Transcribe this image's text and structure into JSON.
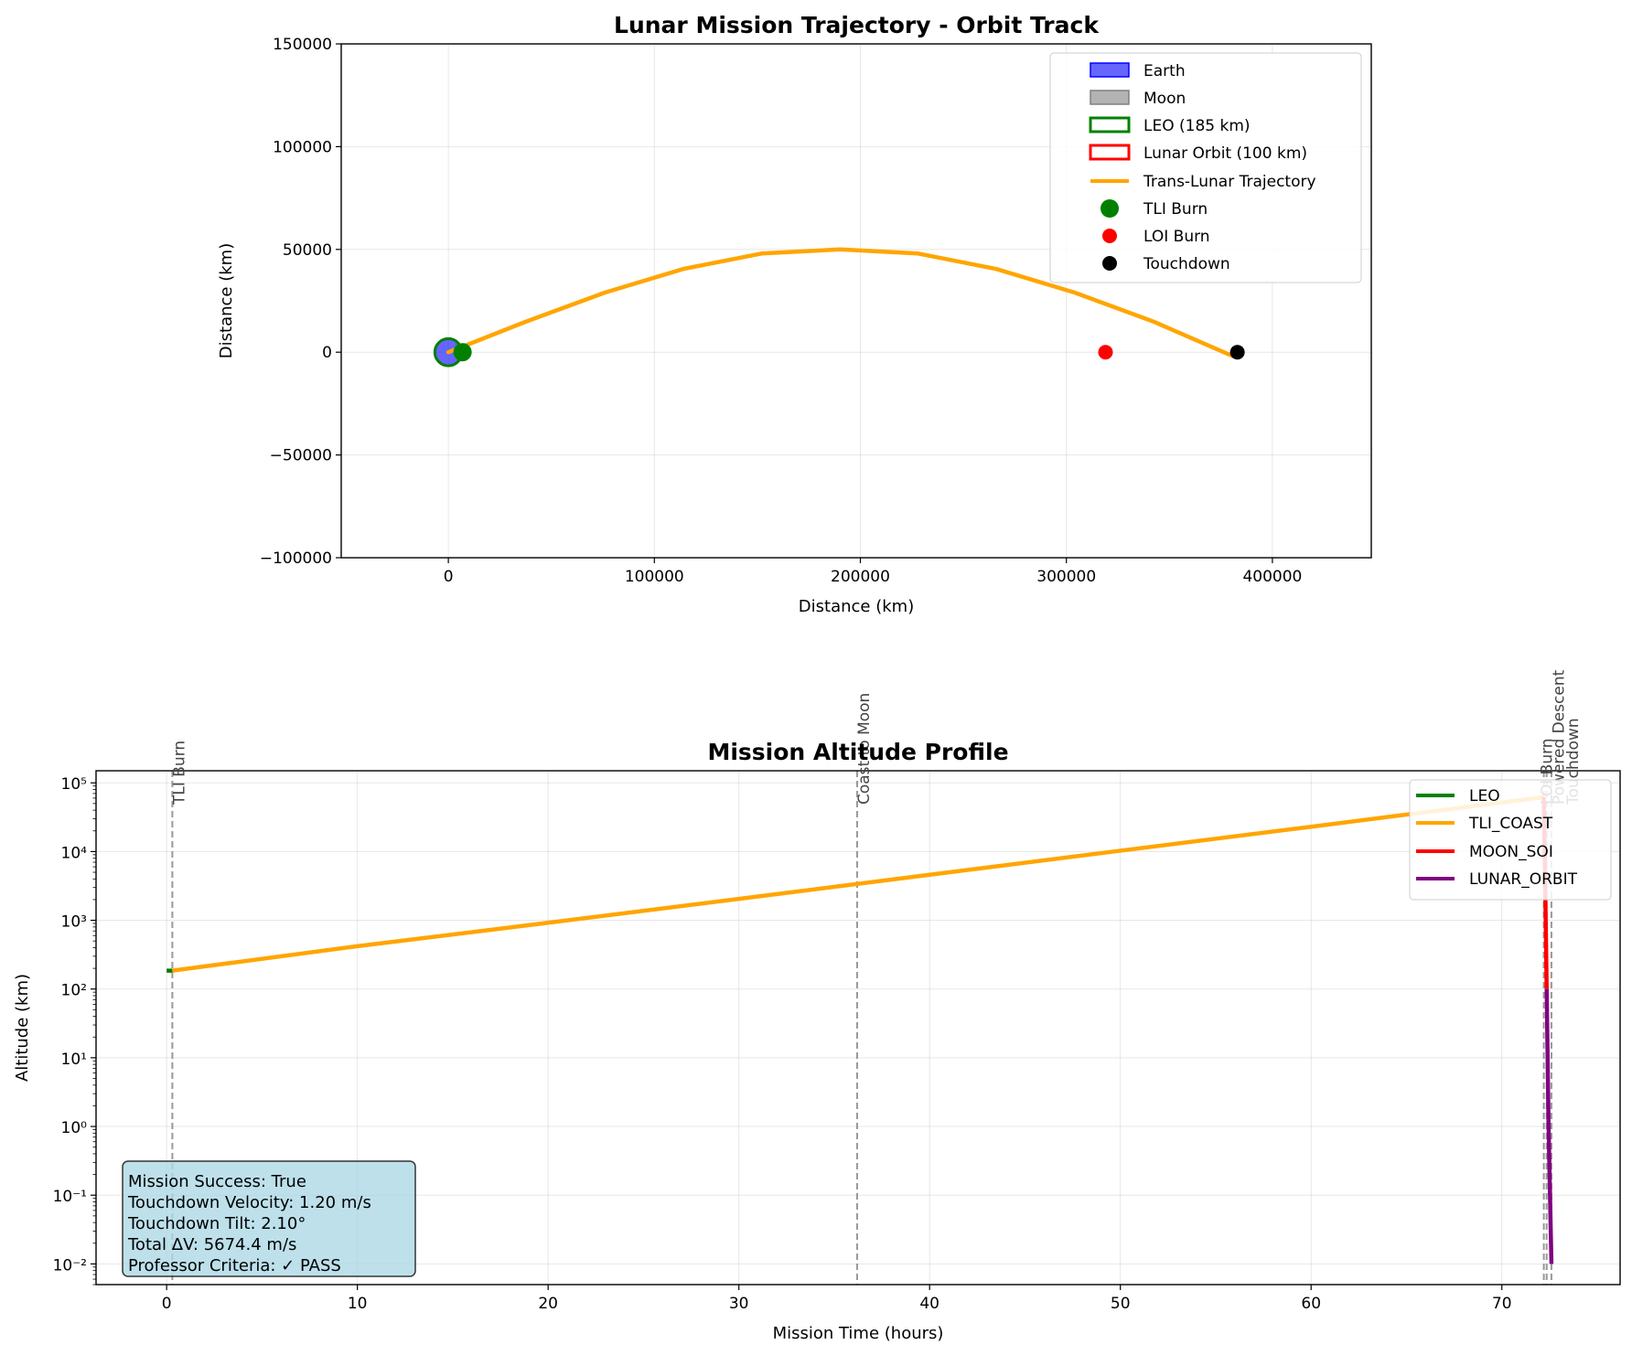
{
  "colors": {
    "earth": "#0000ff",
    "moon": "#808080",
    "leo": "#008000",
    "lunar_orbit": "#ff0000",
    "trajectory": "#ffa500",
    "tli": "#008000",
    "loi": "#ff0000",
    "touchdown": "#000000",
    "tli_coast": "#ffa500",
    "moon_soi": "#ff0000",
    "lunar_orbit_phase": "#800080",
    "info_box": "#add8e6"
  },
  "chart_data": [
    {
      "type": "line",
      "title": "Lunar Mission Trajectory - Orbit Track",
      "xlabel": "Distance (km)",
      "ylabel": "Distance (km)",
      "xlim": [
        -52000,
        448000
      ],
      "ylim": [
        -100000,
        150000
      ],
      "xticks": [
        0,
        100000,
        200000,
        300000,
        400000
      ],
      "yticks": [
        -100000,
        -50000,
        0,
        50000,
        100000,
        150000
      ],
      "xtick_labels": [
        "0",
        "100000",
        "200000",
        "300000",
        "400000"
      ],
      "ytick_labels": [
        "−100000",
        "−50000",
        "0",
        "50000",
        "100000",
        "150000"
      ],
      "grid": true,
      "legend_position": "top-right",
      "legend": [
        {
          "label": "Earth",
          "kind": "patch-fill"
        },
        {
          "label": "Moon",
          "kind": "patch-fill"
        },
        {
          "label": "LEO (185 km)",
          "kind": "patch-outline"
        },
        {
          "label": "Lunar Orbit (100 km)",
          "kind": "patch-outline"
        },
        {
          "label": "Trans-Lunar Trajectory",
          "kind": "line"
        },
        {
          "label": "TLI Burn",
          "kind": "marker"
        },
        {
          "label": "LOI Burn",
          "kind": "marker"
        },
        {
          "label": "Touchdown",
          "kind": "marker"
        }
      ],
      "bodies": [
        {
          "name": "Earth",
          "x": 0,
          "y": 0,
          "radius": 6371
        },
        {
          "name": "LEO (185 km)",
          "x": 0,
          "y": 0,
          "radius": 6556
        }
      ],
      "trajectory": {
        "name": "Trans-Lunar Trajectory",
        "x": [
          0,
          38000,
          76000,
          114000,
          152000,
          190000,
          228000,
          266000,
          304000,
          342000,
          381000
        ],
        "y": [
          0,
          15000,
          29000,
          40500,
          48000,
          50000,
          48000,
          40500,
          29000,
          15000,
          -2000
        ]
      },
      "points": [
        {
          "name": "TLI Burn",
          "x": 6900,
          "y": 0
        },
        {
          "name": "LOI Burn",
          "x": 319000,
          "y": 0
        },
        {
          "name": "Touchdown",
          "x": 383000,
          "y": 0
        }
      ]
    },
    {
      "type": "line",
      "title": "Mission Altitude Profile",
      "xlabel": "Mission Time (hours)",
      "ylabel": "Altitude (km)",
      "xscale": "linear",
      "yscale": "log",
      "xlim": [
        -3.7,
        76.2
      ],
      "ylim": [
        0.005,
        150000
      ],
      "xticks": [
        0,
        10,
        20,
        30,
        40,
        50,
        60,
        70
      ],
      "xtick_labels": [
        "0",
        "10",
        "20",
        "30",
        "40",
        "50",
        "60",
        "70"
      ],
      "yticks": [
        0.01,
        0.1,
        1,
        10,
        100,
        1000,
        10000,
        100000
      ],
      "ytick_labels": [
        "10⁻²",
        "10⁻¹",
        "10⁰",
        "10¹",
        "10²",
        "10³",
        "10⁴",
        "10⁵"
      ],
      "grid": true,
      "legend_position": "top-right",
      "series": [
        {
          "name": "LEO",
          "x": [
            0,
            0.3
          ],
          "y": [
            185,
            185
          ]
        },
        {
          "name": "TLI_COAST",
          "x": [
            0.3,
            10,
            20,
            30,
            40,
            50,
            60,
            72.2
          ],
          "y": [
            185,
            420,
            920,
            2050,
            4600,
            10300,
            23000,
            62000
          ]
        },
        {
          "name": "MOON_SOI",
          "x": [
            72.2,
            72.3,
            72.35
          ],
          "y": [
            62000,
            1000,
            100
          ]
        },
        {
          "name": "LUNAR_ORBIT",
          "x": [
            72.35,
            72.45,
            72.6
          ],
          "y": [
            100,
            1,
            0.01
          ]
        }
      ],
      "events": [
        {
          "label": "TLI Burn",
          "x": 0.3
        },
        {
          "label": "Coast to Moon",
          "x": 36.2
        },
        {
          "label": "LOI Burn",
          "x": 72.2
        },
        {
          "label": "Powered Descent",
          "x": 72.35
        },
        {
          "label": "Touchdown",
          "x": 72.6
        }
      ],
      "info_box": [
        "Mission Success: True",
        "Touchdown Velocity: 1.20 m/s",
        "Touchdown Tilt: 2.10°",
        "Total ΔV: 5674.4 m/s",
        "Professor Criteria: ✓ PASS"
      ]
    }
  ]
}
